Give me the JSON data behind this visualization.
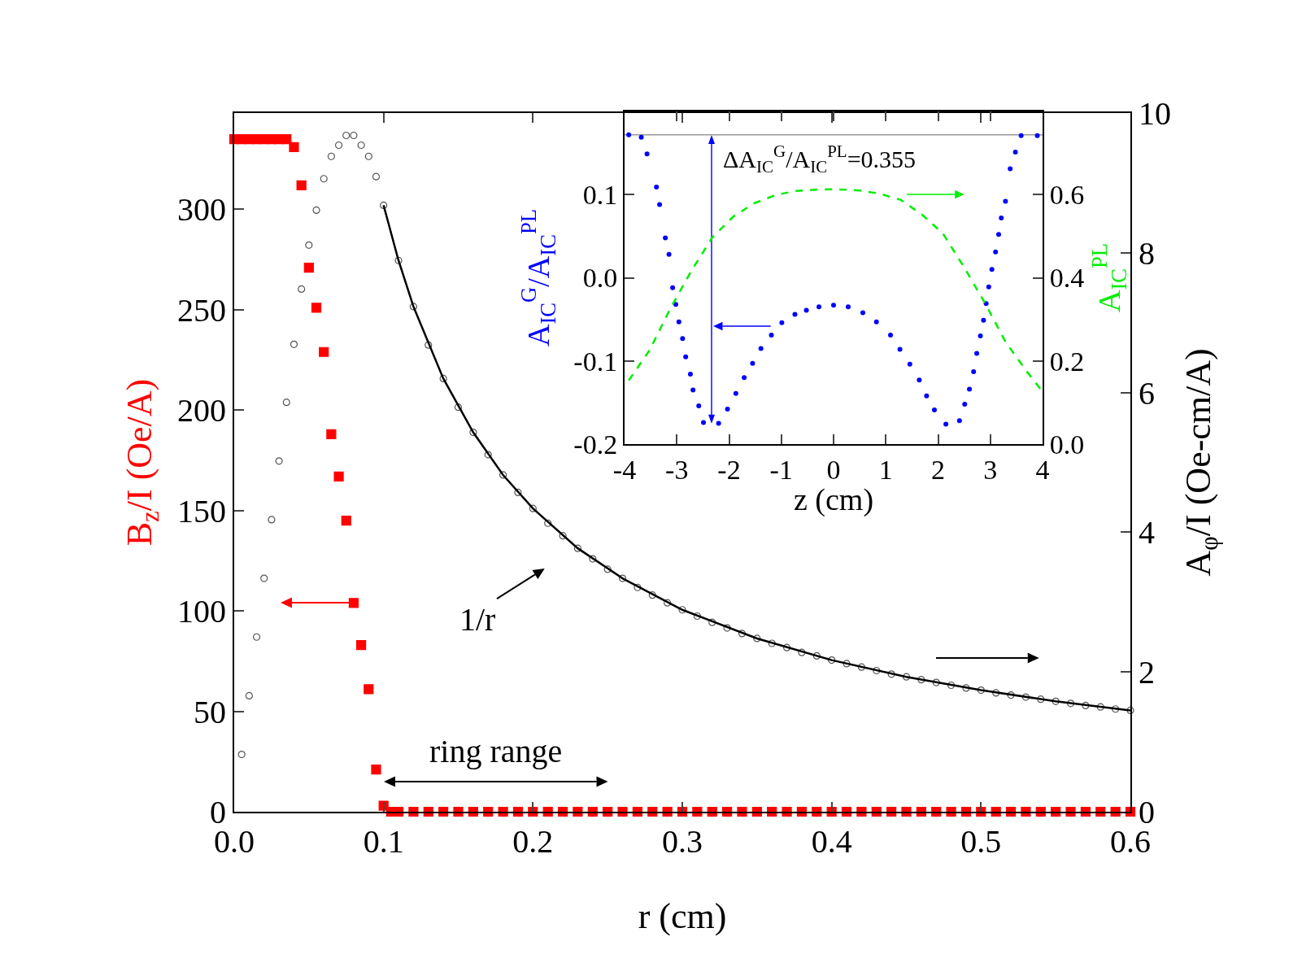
{
  "chart_data": [
    {
      "type": "scatter",
      "xlabel": "r (cm)",
      "ylabel": "B$_{z}$/I (Oe/A)",
      "y2label": "A$_{φ}$/I (Oe-cm/A)",
      "xlim": [
        0,
        0.6
      ],
      "xticks": [
        {
          "value": 0,
          "label": "0.0"
        },
        0.1,
        0.2,
        0.3,
        0.4,
        0.5,
        0.6
      ],
      "ylim": [
        0,
        348
      ],
      "yticks": [
        0,
        50,
        100,
        150,
        200,
        250,
        300
      ],
      "y2lim": [
        0,
        10
      ],
      "y2ticks": [
        0,
        2,
        4,
        6,
        8,
        10
      ],
      "annotations": [
        "1/r",
        "ring range"
      ],
      "series": [
        {
          "type": "scatter",
          "marker": "square",
          "color": "#ff0000",
          "x": [
            0,
            0.005,
            0.01,
            0.015,
            0.02,
            0.025,
            0.03,
            0.035,
            0.04,
            0.045,
            0.05,
            0.055,
            0.06,
            0.065,
            0.07,
            0.075,
            0.08,
            0.085,
            0.09,
            0.095,
            0.1,
            0.105,
            0.11,
            0.12,
            0.13,
            0.14,
            0.15,
            0.16,
            0.17,
            0.18,
            0.19,
            0.2,
            0.21,
            0.22,
            0.23,
            0.24,
            0.25,
            0.26,
            0.27,
            0.28,
            0.29,
            0.3,
            0.31,
            0.32,
            0.33,
            0.34,
            0.35,
            0.36,
            0.37,
            0.38,
            0.39,
            0.4,
            0.41,
            0.42,
            0.43,
            0.44,
            0.45,
            0.46,
            0.47,
            0.48,
            0.49,
            0.5,
            0.51,
            0.52,
            0.53,
            0.54,
            0.55,
            0.56,
            0.57,
            0.58,
            0.59,
            0.6
          ],
          "values": [
            335,
            335,
            335,
            335,
            335,
            335,
            335,
            335,
            331,
            312,
            271,
            251,
            229,
            188,
            167,
            145,
            104,
            83,
            61,
            21,
            3,
            0,
            0,
            0,
            0,
            0,
            0,
            0,
            0,
            0,
            0,
            0,
            0,
            0,
            0,
            0,
            0,
            0,
            0,
            0,
            0,
            0,
            0,
            0,
            0,
            0,
            0,
            0,
            0,
            0,
            0,
            0,
            0,
            0,
            0,
            0,
            0,
            0,
            0,
            0,
            0,
            0,
            0,
            0,
            0,
            0,
            0,
            0,
            0,
            0,
            0,
            0
          ]
        },
        {
          "type": "scatter",
          "marker": "circle",
          "axis": "y2",
          "color": "#555555",
          "x": [
            0.005,
            0.01,
            0.015,
            0.02,
            0.025,
            0.03,
            0.035,
            0.04,
            0.045,
            0.05,
            0.055,
            0.06,
            0.065,
            0.07,
            0.075,
            0.08,
            0.085,
            0.09,
            0.095,
            0.1,
            0.11,
            0.12,
            0.13,
            0.14,
            0.15,
            0.16,
            0.17,
            0.18,
            0.19,
            0.2,
            0.21,
            0.22,
            0.23,
            0.24,
            0.25,
            0.26,
            0.27,
            0.28,
            0.29,
            0.3,
            0.31,
            0.32,
            0.33,
            0.34,
            0.35,
            0.36,
            0.37,
            0.38,
            0.39,
            0.4,
            0.41,
            0.42,
            0.43,
            0.44,
            0.45,
            0.46,
            0.47,
            0.48,
            0.49,
            0.5,
            0.51,
            0.52,
            0.53,
            0.54,
            0.55,
            0.56,
            0.57,
            0.58,
            0.59,
            0.6
          ],
          "values": [
            0.82,
            1.66,
            2.5,
            3.34,
            4.18,
            5.02,
            5.86,
            6.69,
            7.48,
            8.11,
            8.61,
            9.06,
            9.38,
            9.54,
            9.68,
            9.68,
            9.54,
            9.38,
            9.09,
            8.68,
            7.89,
            7.23,
            6.68,
            6.2,
            5.79,
            5.43,
            5.11,
            4.82,
            4.57,
            4.34,
            4.13,
            3.95,
            3.77,
            3.62,
            3.47,
            3.34,
            3.21,
            3.1,
            2.99,
            2.89,
            2.8,
            2.71,
            2.63,
            2.55,
            2.48,
            2.41,
            2.35,
            2.28,
            2.23,
            2.17,
            2.12,
            2.07,
            2.02,
            1.97,
            1.93,
            1.89,
            1.85,
            1.81,
            1.77,
            1.74,
            1.7,
            1.67,
            1.64,
            1.61,
            1.58,
            1.55,
            1.52,
            1.5,
            1.47,
            1.45
          ]
        },
        {
          "type": "line",
          "line_style": "solid",
          "axis": "y2",
          "color": "#000000",
          "x": [
            0.1,
            0.11,
            0.12,
            0.14,
            0.16,
            0.18,
            0.2,
            0.23,
            0.26,
            0.3,
            0.35,
            0.4,
            0.45,
            0.5,
            0.55,
            0.6
          ],
          "values": [
            8.68,
            7.89,
            7.23,
            6.2,
            5.43,
            4.82,
            4.34,
            3.77,
            3.34,
            2.89,
            2.48,
            2.17,
            1.93,
            1.74,
            1.58,
            1.45
          ]
        }
      ]
    },
    {
      "type": "scatter",
      "xlabel": "z (cm)",
      "ylabel": "A$_{IC}$$^{G}$/A$_{IC}$$^{PL}$",
      "y2label": "A$_{IC}$$^{PL}$",
      "xlim": [
        -4,
        4
      ],
      "xticks": [
        -4,
        -3,
        -2,
        -1,
        0,
        1,
        2,
        3,
        4
      ],
      "ylim": [
        -0.2,
        0.2
      ],
      "yticks": [
        -0.2,
        -0.1,
        {
          "value": 0,
          "label": "0.0"
        },
        0.1
      ],
      "y2lim": [
        0,
        0.8
      ],
      "y2ticks": [
        {
          "value": 0,
          "label": "0.0"
        },
        0.2,
        0.4,
        0.6
      ],
      "annotations": [
        "ΔA$_{IC}$$^{G}$/A$_{IC}$$^{PL}$=0.355"
      ],
      "ref_lines": [
        {
          "axis": "y",
          "value": 0.172,
          "color": "#999999"
        }
      ],
      "series": [
        {
          "type": "scatter",
          "marker": "circle",
          "color": "#0000ff",
          "x": [
            -3.92,
            -3.68,
            -3.57,
            -3.39,
            -3.33,
            -3.22,
            -3.15,
            -3.08,
            -3.02,
            -2.96,
            -2.89,
            -2.83,
            -2.74,
            -2.69,
            -2.58,
            -2.49,
            -2.2,
            -2.03,
            -1.87,
            -1.71,
            -1.55,
            -1.39,
            -1.19,
            -0.99,
            -0.74,
            -0.52,
            -0.28,
            0,
            0.28,
            0.56,
            0.82,
            1.09,
            1.27,
            1.46,
            1.64,
            1.78,
            1.93,
            2.15,
            2.41,
            2.51,
            2.6,
            2.68,
            2.74,
            2.81,
            2.87,
            2.92,
            2.97,
            3.03,
            3.1,
            3.16,
            3.21,
            3.29,
            3.38,
            3.48,
            3.59,
            3.9
          ],
          "values": [
            0.172,
            0.169,
            0.149,
            0.109,
            0.088,
            0.048,
            0.028,
            -0.012,
            -0.032,
            -0.053,
            -0.073,
            -0.095,
            -0.116,
            -0.135,
            -0.154,
            -0.174,
            -0.175,
            -0.158,
            -0.139,
            -0.12,
            -0.103,
            -0.085,
            -0.069,
            -0.054,
            -0.044,
            -0.039,
            -0.035,
            -0.033,
            -0.035,
            -0.042,
            -0.053,
            -0.069,
            -0.086,
            -0.104,
            -0.123,
            -0.142,
            -0.159,
            -0.176,
            -0.172,
            -0.152,
            -0.134,
            -0.113,
            -0.091,
            -0.07,
            -0.051,
            -0.031,
            -0.011,
            0.01,
            0.031,
            0.052,
            0.072,
            0.092,
            0.131,
            0.151,
            0.171,
            0.171
          ]
        },
        {
          "type": "line",
          "line_style": "dashed",
          "axis": "y2",
          "color": "#00ee00",
          "x": [
            -3.92,
            -3.52,
            -3.12,
            -2.72,
            -2.32,
            -1.92,
            -1.52,
            -1.11,
            -0.71,
            -0.31,
            0.01,
            0.49,
            0.89,
            1.29,
            1.69,
            2.09,
            2.49,
            2.89,
            3.29,
            3.69,
            3.98
          ],
          "values": [
            0.153,
            0.226,
            0.327,
            0.417,
            0.497,
            0.547,
            0.579,
            0.599,
            0.609,
            0.612,
            0.613,
            0.61,
            0.602,
            0.587,
            0.552,
            0.507,
            0.427,
            0.341,
            0.246,
            0.176,
            0.129
          ]
        }
      ]
    }
  ]
}
